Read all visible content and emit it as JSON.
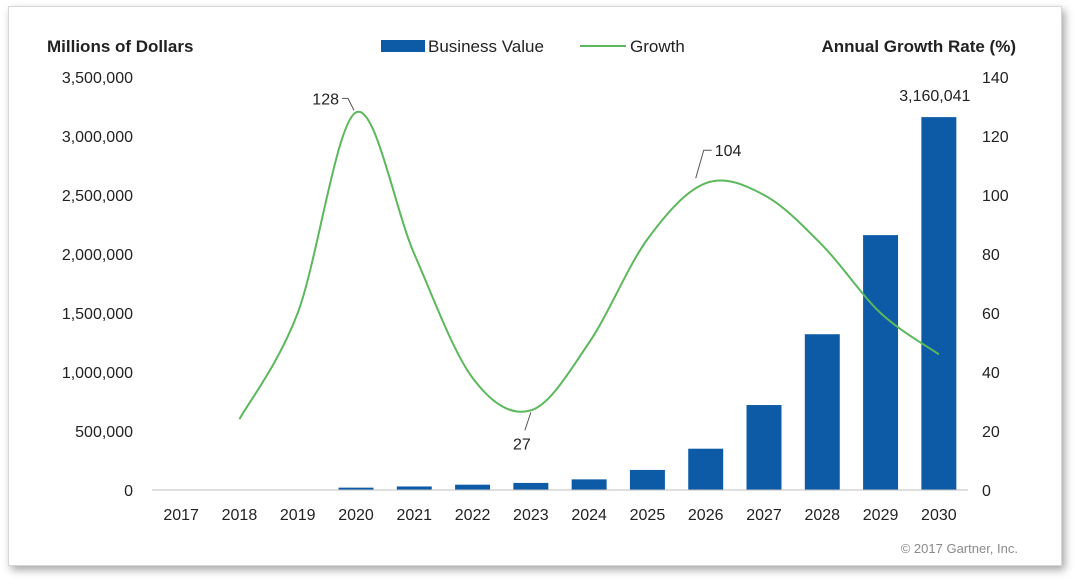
{
  "chart_data": {
    "type": "bar",
    "left_axis_title": "Millions of Dollars",
    "right_axis_title": "Annual Growth Rate (%)",
    "categories": [
      "2017",
      "2018",
      "2019",
      "2020",
      "2021",
      "2022",
      "2023",
      "2024",
      "2025",
      "2026",
      "2027",
      "2028",
      "2029",
      "2030"
    ],
    "series": [
      {
        "name": "Business Value",
        "type": "bar",
        "axis": "left",
        "color": "#0d5aa7",
        "values": [
          0,
          0,
          0,
          20000,
          30000,
          45000,
          60000,
          90000,
          170000,
          350000,
          720000,
          1320000,
          2160000,
          3160041
        ]
      },
      {
        "name": "Growth",
        "type": "line",
        "axis": "right",
        "color": "#5cb85c",
        "values": [
          null,
          24,
          60,
          128,
          80,
          38,
          27,
          50,
          85,
          104,
          100,
          83,
          60,
          46
        ]
      }
    ],
    "y_left": {
      "min": 0,
      "max": 3500000,
      "ticks": [
        "0",
        "500,000",
        "1,000,000",
        "1,500,000",
        "2,000,000",
        "2,500,000",
        "3,000,000",
        "3,500,000"
      ]
    },
    "y_right": {
      "min": 0,
      "max": 140,
      "ticks": [
        "0",
        "20",
        "40",
        "60",
        "80",
        "100",
        "120",
        "140"
      ]
    },
    "annotations": [
      {
        "series": "Growth",
        "category": "2020",
        "label": "128"
      },
      {
        "series": "Growth",
        "category": "2023",
        "label": "27"
      },
      {
        "series": "Growth",
        "category": "2026",
        "label": "104"
      },
      {
        "series": "Business Value",
        "category": "2030",
        "label": "3,160,041"
      }
    ],
    "legend": {
      "position": "top",
      "entries": [
        "Business Value",
        "Growth"
      ]
    },
    "grid": false,
    "copyright": "© 2017 Gartner, Inc."
  }
}
